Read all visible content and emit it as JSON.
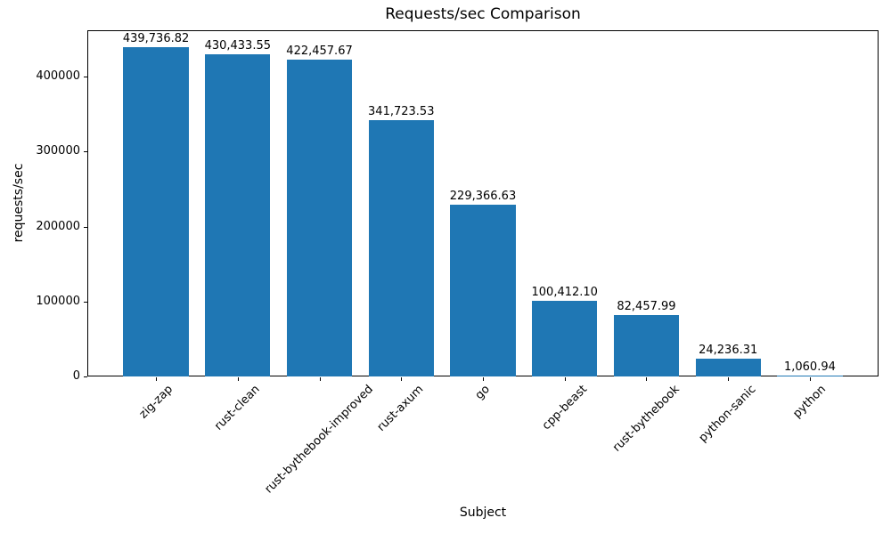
{
  "figure": {
    "background": "#ffffff",
    "text_color": "#000000"
  },
  "chart_data": {
    "type": "bar",
    "title": "Requests/sec Comparison",
    "xlabel": "Subject",
    "ylabel": "requests/sec",
    "categories": [
      "zig-zap",
      "rust-clean",
      "rust-bythebook-improved",
      "rust-axum",
      "go",
      "cpp-beast",
      "rust-bythebook",
      "python-sanic",
      "python"
    ],
    "values": [
      439736.82,
      430433.55,
      422457.67,
      341723.53,
      229366.63,
      100412.1,
      82457.99,
      24236.31,
      1060.94
    ],
    "value_labels": [
      "439,736.82",
      "430,433.55",
      "422,457.67",
      "341,723.53",
      "229,366.63",
      "100,412.10",
      "82,457.99",
      "24,236.31",
      "1,060.94"
    ],
    "bar_color": "#1f77b4",
    "ylim": [
      0,
      462000
    ],
    "yticks": [
      0,
      100000,
      200000,
      300000,
      400000
    ],
    "ytick_labels": [
      "0",
      "100000",
      "200000",
      "300000",
      "400000"
    ],
    "xtick_label_rotation_deg": 45,
    "grid": false,
    "legend": "none"
  }
}
